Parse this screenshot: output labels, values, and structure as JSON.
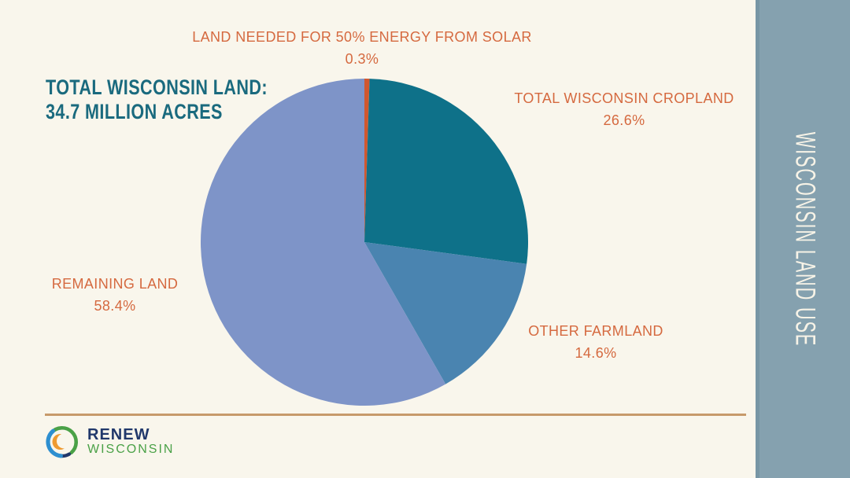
{
  "page": {
    "background_color": "#f9f6ec",
    "divider_color": "#c79a6a"
  },
  "sidebar": {
    "label": "WISCONSIN LAND USE",
    "background_color": "#85a1af",
    "text_color": "#f7f3e7"
  },
  "title": {
    "line1": "TOTAL WISCONSIN LAND:",
    "line2": "34.7 MILLION ACRES",
    "color": "#1a6a7e"
  },
  "logo": {
    "line1": "RENEW",
    "line2": "WISCONSIN",
    "line1_color": "#21386b",
    "line2_color": "#4aa147",
    "icon": "renew-wisconsin-swirl"
  },
  "chart_data": {
    "type": "pie",
    "title": "WISCONSIN LAND USE",
    "annotation": "TOTAL WISCONSIN LAND: 34.7 MILLION ACRES",
    "start_angle_deg": 0,
    "direction": "clockwise",
    "legend_position": "around-pie",
    "label_color": "#d5693f",
    "slices": [
      {
        "label": "LAND NEEDED FOR 50% ENERGY FROM SOLAR",
        "value": 0.3,
        "value_label": "0.3%",
        "color": "#d1572e"
      },
      {
        "label": "TOTAL WISCONSIN CROPLAND",
        "value": 26.6,
        "value_label": "26.6%",
        "color": "#0e7189"
      },
      {
        "label": "OTHER FARMLAND",
        "value": 14.6,
        "value_label": "14.6%",
        "color": "#4a84b0"
      },
      {
        "label": "REMAINING LAND",
        "value": 58.4,
        "value_label": "58.4%",
        "color": "#7e94c8"
      }
    ]
  }
}
